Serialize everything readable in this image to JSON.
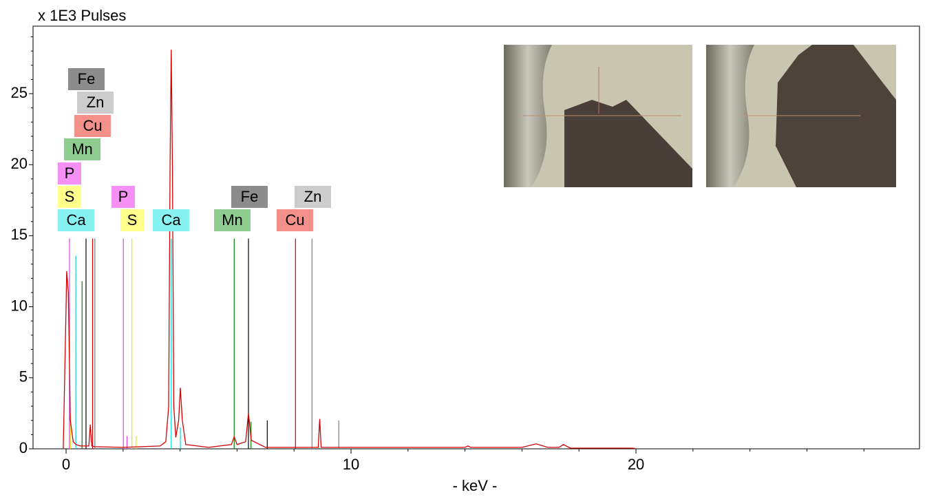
{
  "chart_data": {
    "type": "line",
    "ylabel": "x 1E3 Pulses",
    "xlabel": "- keV -",
    "xlim": [
      -1.16,
      29.95
    ],
    "ylim": [
      0,
      29.75
    ],
    "xticks": [
      0,
      10,
      20
    ],
    "yticks": [
      0,
      5,
      10,
      15,
      20,
      25
    ],
    "xminorticks": [
      2,
      4,
      6,
      8,
      12,
      14,
      16,
      18,
      22,
      24,
      26,
      28
    ],
    "yminorticks": [
      1,
      2,
      3,
      4,
      6,
      7,
      8,
      9,
      11,
      12,
      13,
      14,
      16,
      17,
      18,
      19,
      21,
      22,
      23,
      24,
      26,
      27,
      28,
      29
    ],
    "series": [
      {
        "color": "#d40000",
        "x": [
          -0.1,
          0.0,
          0.02,
          0.08,
          0.15,
          0.25,
          0.35,
          0.5,
          0.8,
          0.85,
          0.9,
          1.0,
          2.0,
          3.3,
          3.5,
          3.6,
          3.65,
          3.69,
          3.73,
          3.78,
          3.85,
          3.95,
          4.01,
          4.08,
          4.2,
          5.0,
          5.8,
          5.9,
          6.0,
          6.3,
          6.4,
          6.5,
          7.0,
          8.85,
          8.9,
          8.95,
          10.0,
          14.0,
          14.1,
          14.2,
          16.0,
          16.5,
          16.9,
          17.3,
          17.45,
          17.7,
          19.9,
          20.0
        ],
        "values": [
          0,
          10,
          12.5,
          11,
          2,
          0.5,
          0.3,
          0.2,
          0.2,
          1.7,
          0.2,
          0.15,
          0.1,
          0.2,
          0.5,
          3,
          20,
          28.1,
          20,
          3,
          0.8,
          2,
          4.3,
          2,
          0.3,
          0.1,
          0.3,
          0.85,
          0.3,
          0.5,
          2.5,
          0.6,
          0.1,
          0.1,
          2.1,
          0.1,
          0.1,
          0.1,
          0.2,
          0.1,
          0.1,
          0.35,
          0.1,
          0.1,
          0.3,
          0.05,
          0.05,
          0
        ]
      }
    ],
    "marker_lines": [
      {
        "color": "#00d8d8",
        "x": 3.69,
        "height": 14.8
      },
      {
        "color": "#00d8d8",
        "x": 4.01,
        "height": 1.5
      },
      {
        "color": "#00d8d8",
        "x": 0.34,
        "height": 13.6
      },
      {
        "color": "#e040e0",
        "x": 2.01,
        "height": 14.8
      },
      {
        "color": "#e040e0",
        "x": 2.14,
        "height": 0.9
      },
      {
        "color": "#e040e0",
        "x": 0.12,
        "height": 14.8
      },
      {
        "color": "#e8e800",
        "x": 2.31,
        "height": 14.8
      },
      {
        "color": "#e8e800",
        "x": 2.46,
        "height": 0.9
      },
      {
        "color": "#e8e800",
        "x": 0.15,
        "height": 2.3
      },
      {
        "color": "#008000",
        "x": 5.9,
        "height": 14.8
      },
      {
        "color": "#008000",
        "x": 6.49,
        "height": 1.9
      },
      {
        "color": "#008000",
        "x": 0.56,
        "height": 11.8
      },
      {
        "color": "#000000",
        "x": 6.4,
        "height": 14.8
      },
      {
        "color": "#000000",
        "x": 7.06,
        "height": 2.0
      },
      {
        "color": "#000000",
        "x": 0.7,
        "height": 14.8
      },
      {
        "color": "#d40000",
        "x": 8.05,
        "height": 14.8
      },
      {
        "color": "#d40000",
        "x": 0.93,
        "height": 14.8
      },
      {
        "color": "#808080",
        "x": 8.63,
        "height": 14.8
      },
      {
        "color": "#808080",
        "x": 9.57,
        "height": 2.0
      },
      {
        "color": "#808080",
        "x": 1.01,
        "height": 14.8
      }
    ],
    "labels": [
      {
        "text": "Fe",
        "color": "#8c8c8c"
      },
      {
        "text": "Zn",
        "color": "#cccccc"
      },
      {
        "text": "Cu",
        "color": "#f4908a"
      },
      {
        "text": "Mn",
        "color": "#8fcc8f"
      },
      {
        "text": "P",
        "color": "#f590f5"
      },
      {
        "text": "S",
        "color": "#ffff8c"
      },
      {
        "text": "Ca",
        "color": "#86f2f2"
      },
      {
        "text": "P",
        "color": "#f590f5"
      },
      {
        "text": "S",
        "color": "#ffff8c"
      },
      {
        "text": "Ca",
        "color": "#86f2f2"
      },
      {
        "text": "Fe",
        "color": "#8c8c8c"
      },
      {
        "text": "Mn",
        "color": "#8fcc8f"
      },
      {
        "text": "Zn",
        "color": "#cccccc"
      },
      {
        "text": "Cu",
        "color": "#f4908a"
      }
    ]
  }
}
